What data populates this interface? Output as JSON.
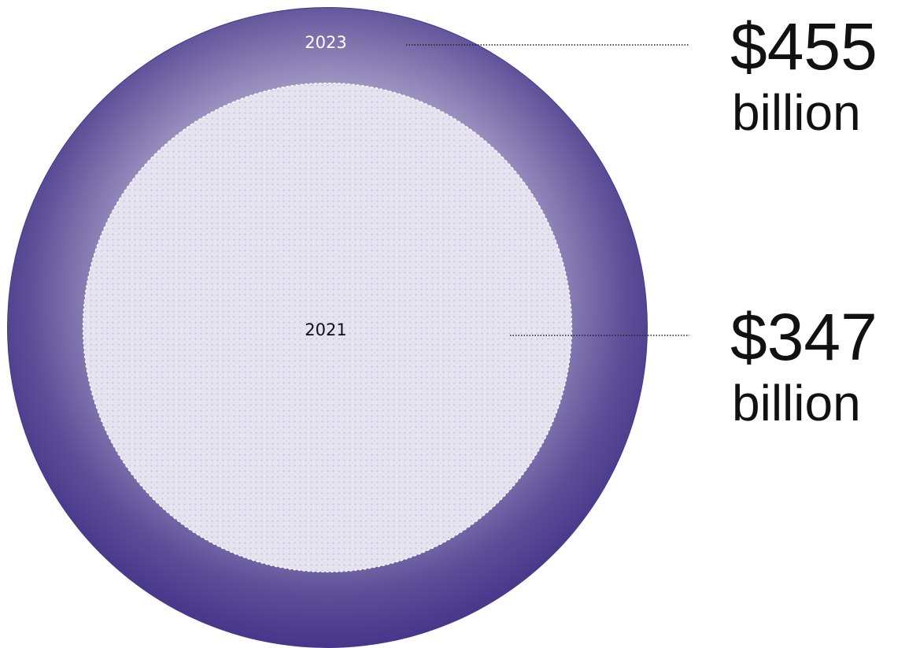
{
  "chart_data": {
    "type": "bubble",
    "categories": [
      "2023",
      "2021"
    ],
    "values": [
      455,
      347
    ],
    "value_labels": [
      "$455",
      "$347"
    ],
    "unit": "billion",
    "colors": [
      "#47368a",
      "#e6e3f0"
    ]
  }
}
